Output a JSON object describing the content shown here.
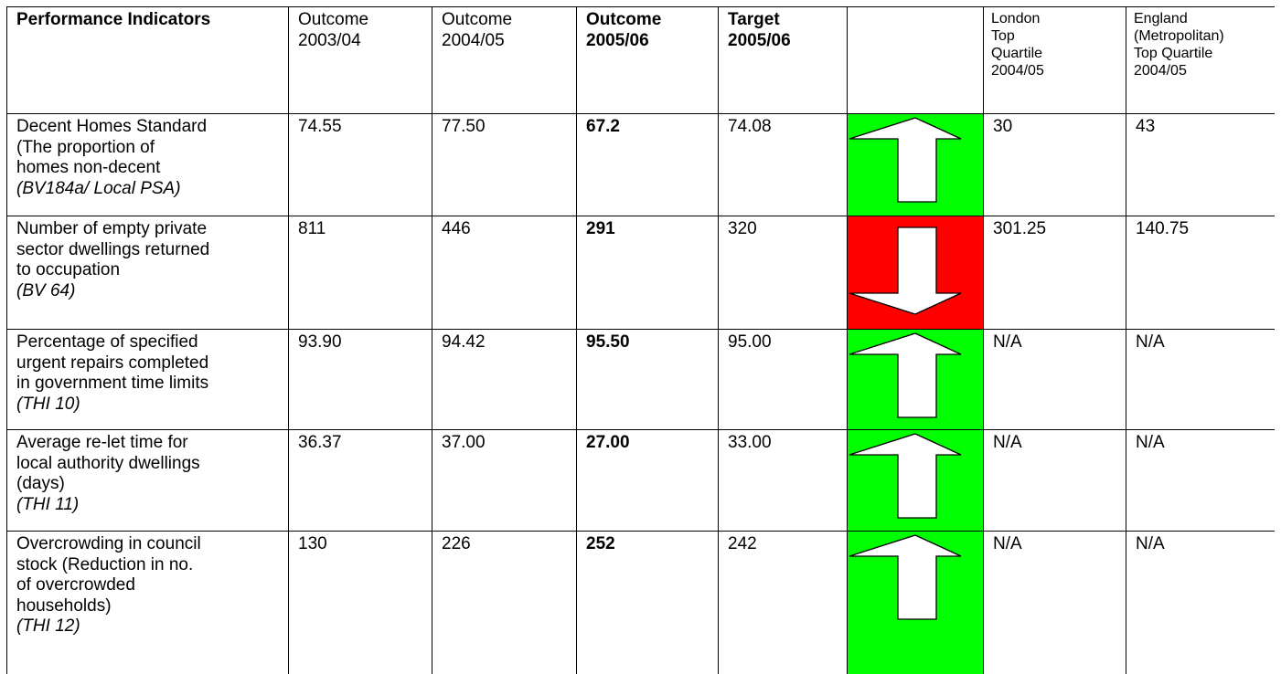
{
  "table": {
    "header": [
      [
        "Performance Indicators"
      ],
      [
        "Outcome",
        "2003/04"
      ],
      [
        "Outcome",
        "2004/05"
      ],
      [
        "Outcome",
        "2005/06"
      ],
      [
        "Target",
        "2005/06"
      ],
      [
        "London",
        "Top",
        "Quartile",
        "2004/05"
      ],
      [
        "England",
        "(Metropolitan)",
        "Top Quartile",
        "2004/05"
      ]
    ],
    "rows": [
      {
        "indicator": [
          "Decent Homes Standard",
          "(The proportion of",
          "homes non-decent"
        ],
        "code": "(BV184a/ Local PSA)",
        "cells": [
          "74.55",
          "77.50",
          "67.2",
          "74.08",
          "30",
          "43"
        ]
      },
      {
        "indicator": [
          "Number of empty private",
          "sector dwellings returned",
          "to occupation"
        ],
        "code": "(BV 64)",
        "cells": [
          "811",
          "446",
          "291",
          "320",
          "301.25",
          "140.75"
        ]
      },
      {
        "indicator": [
          "Percentage of specified",
          "urgent repairs completed",
          "in government time limits"
        ],
        "code": "(THI 10)",
        "cells": [
          "93.90",
          "94.42",
          "95.50",
          "95.00",
          "N/A",
          "N/A"
        ]
      },
      {
        "indicator": [
          "Average re-let time for",
          "local authority dwellings",
          "(days)"
        ],
        "code": "(THI 11)",
        "cells": [
          "36.37",
          "37.00",
          "27.00",
          "33.00",
          "N/A",
          "N/A"
        ]
      },
      {
        "indicator": [
          "Overcrowding in council",
          "stock (Reduction in no.",
          "of overcrowded",
          "households)"
        ],
        "code": "(THI 12)",
        "cells": [
          "130",
          "226",
          "252",
          "242",
          "N/A",
          "N/A"
        ]
      }
    ]
  }
}
